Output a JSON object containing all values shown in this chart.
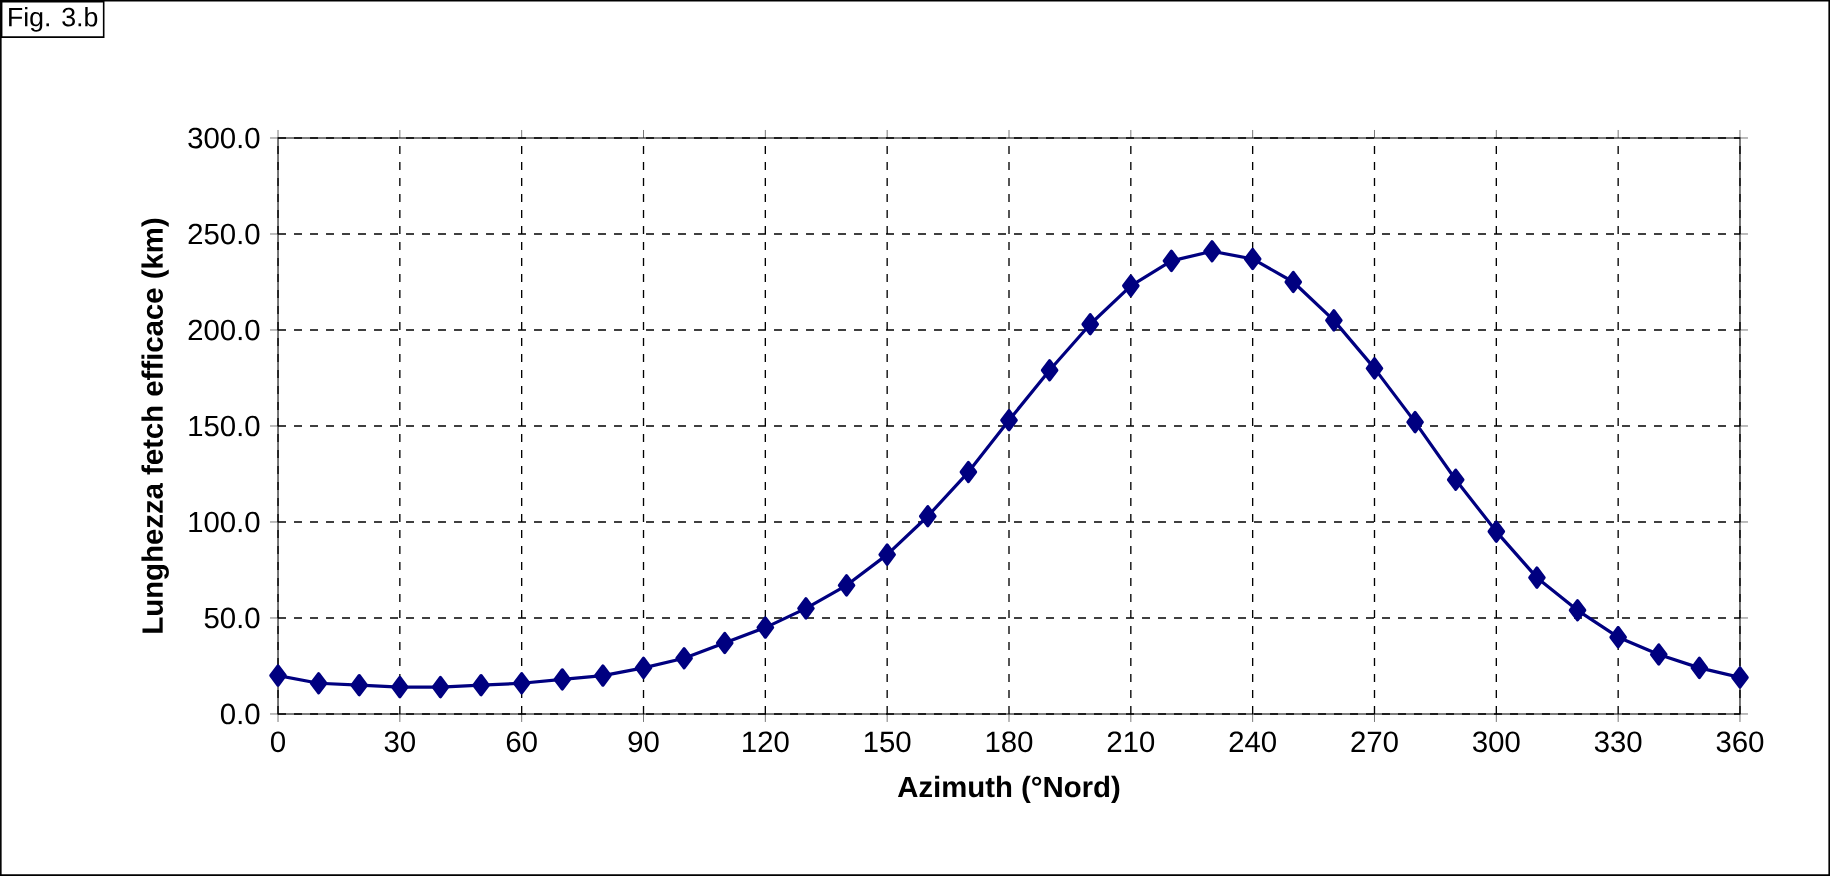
{
  "chart_data": {
    "type": "line",
    "title": "Fig. 3.b",
    "xlabel": "Azimuth (°Nord)",
    "ylabel": "Lunghezza fetch efficace (km)",
    "x": [
      0,
      10,
      20,
      30,
      40,
      50,
      60,
      70,
      80,
      90,
      100,
      110,
      120,
      130,
      140,
      150,
      160,
      170,
      180,
      190,
      200,
      210,
      220,
      230,
      240,
      250,
      260,
      270,
      280,
      290,
      300,
      310,
      320,
      330,
      340,
      350,
      360
    ],
    "values": [
      20,
      16,
      15,
      14,
      14,
      15,
      16,
      18,
      20,
      24,
      29,
      37,
      45,
      55,
      67,
      83,
      103,
      126,
      153,
      179,
      203,
      223,
      236,
      241,
      237,
      225,
      205,
      180,
      152,
      122,
      95,
      71,
      54,
      40,
      31,
      24,
      19
    ],
    "color": "#000080",
    "marker": "diamond",
    "line_style": "solid",
    "grid": true,
    "xlim": [
      0,
      360
    ],
    "xticks": [
      0,
      30,
      60,
      90,
      120,
      150,
      180,
      210,
      240,
      270,
      300,
      330,
      360
    ],
    "ylim": [
      0,
      300
    ],
    "yticks": [
      {
        "value": 0,
        "label": "0.0"
      },
      {
        "value": 50,
        "label": "50.0"
      },
      {
        "value": 100,
        "label": "100.0"
      },
      {
        "value": 150,
        "label": "150.0"
      },
      {
        "value": 200,
        "label": "200.0"
      },
      {
        "value": 250,
        "label": "250.0"
      },
      {
        "value": 300,
        "label": "300.0"
      }
    ]
  }
}
